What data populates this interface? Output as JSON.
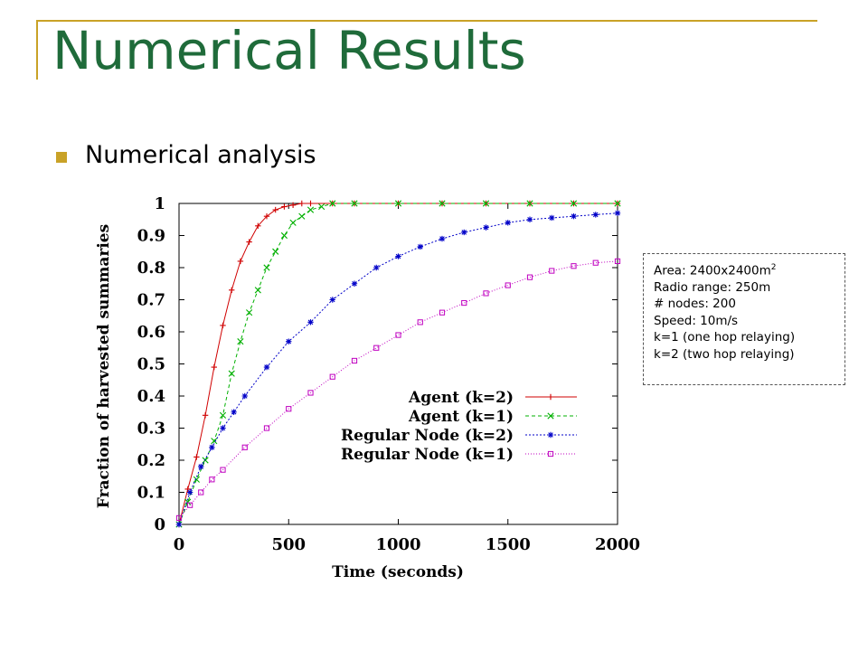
{
  "slide": {
    "title": "Numerical Results",
    "bullet": "Numerical analysis",
    "accent_color": "#C9A227",
    "title_color": "#1F6B3A"
  },
  "info_box": {
    "area": "Area: 2400x2400m",
    "area_superscript": "2",
    "radio_range": "Radio range: 250m",
    "nodes": "# nodes: 200",
    "speed": "Speed: 10m/s",
    "k1": "k=1 (one hop relaying)",
    "k2": "k=2 (two hop relaying)"
  },
  "chart_data": {
    "type": "line",
    "xlabel": "Time (seconds)",
    "ylabel": "Fraction of harvested summaries",
    "xlim": [
      0,
      2000
    ],
    "ylim": [
      0,
      1
    ],
    "x_ticks": [
      "0",
      "500",
      "1000",
      "1500",
      "2000"
    ],
    "y_ticks": [
      "0",
      "0.1",
      "0.2",
      "0.3",
      "0.4",
      "0.5",
      "0.6",
      "0.7",
      "0.8",
      "0.9",
      "1"
    ],
    "grid": false,
    "legend_position": "bottom-right",
    "series": [
      {
        "name": "Agent (k=2)",
        "color": "#d00000",
        "marker": "plus",
        "dash": "",
        "x": [
          0,
          40,
          80,
          120,
          160,
          200,
          240,
          280,
          320,
          360,
          400,
          440,
          480,
          520,
          560,
          600,
          700,
          800,
          1000,
          1200,
          1400,
          1600,
          1800,
          2000
        ],
        "y": [
          0,
          0.11,
          0.21,
          0.34,
          0.49,
          0.62,
          0.73,
          0.82,
          0.88,
          0.93,
          0.96,
          0.98,
          0.99,
          0.995,
          1,
          1,
          1,
          1,
          1,
          1,
          1,
          1,
          1,
          1
        ]
      },
      {
        "name": "Agent (k=1)",
        "color": "#00b000",
        "marker": "x",
        "dash": "4,3",
        "x": [
          0,
          40,
          80,
          120,
          160,
          200,
          240,
          280,
          320,
          360,
          400,
          440,
          480,
          520,
          560,
          600,
          650,
          700,
          800,
          1000,
          1200,
          1400,
          1600,
          1800,
          2000
        ],
        "y": [
          0,
          0.07,
          0.14,
          0.2,
          0.26,
          0.34,
          0.47,
          0.57,
          0.66,
          0.73,
          0.8,
          0.85,
          0.9,
          0.94,
          0.96,
          0.98,
          0.99,
          1,
          1,
          1,
          1,
          1,
          1,
          1,
          1
        ]
      },
      {
        "name": "Regular Node (k=2)",
        "color": "#0000c8",
        "marker": "star",
        "dash": "2,2",
        "x": [
          0,
          50,
          100,
          150,
          200,
          250,
          300,
          400,
          500,
          600,
          700,
          800,
          900,
          1000,
          1100,
          1200,
          1300,
          1400,
          1500,
          1600,
          1700,
          1800,
          1900,
          2000
        ],
        "y": [
          0,
          0.1,
          0.18,
          0.24,
          0.3,
          0.35,
          0.4,
          0.49,
          0.57,
          0.63,
          0.7,
          0.75,
          0.8,
          0.835,
          0.865,
          0.89,
          0.91,
          0.925,
          0.94,
          0.95,
          0.955,
          0.96,
          0.965,
          0.97
        ]
      },
      {
        "name": "Regular Node (k=1)",
        "color": "#c000c0",
        "marker": "square",
        "dash": "1,2",
        "x": [
          0,
          50,
          100,
          150,
          200,
          300,
          400,
          500,
          600,
          700,
          800,
          900,
          1000,
          1100,
          1200,
          1300,
          1400,
          1500,
          1600,
          1700,
          1800,
          1900,
          2000
        ],
        "y": [
          0.02,
          0.06,
          0.1,
          0.14,
          0.17,
          0.24,
          0.3,
          0.36,
          0.41,
          0.46,
          0.51,
          0.55,
          0.59,
          0.63,
          0.66,
          0.69,
          0.72,
          0.745,
          0.77,
          0.79,
          0.805,
          0.815,
          0.82
        ]
      }
    ]
  }
}
